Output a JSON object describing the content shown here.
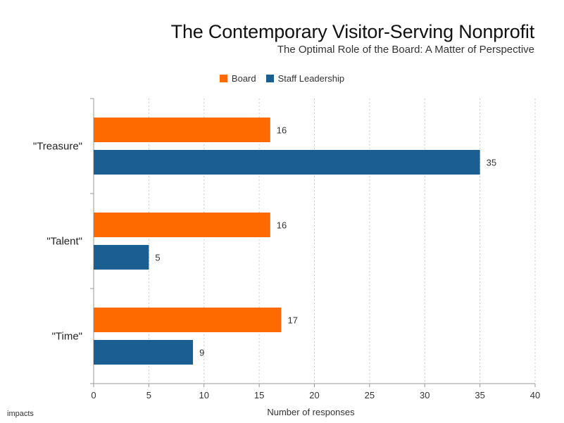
{
  "header": {
    "title": "The Contemporary Visitor-Serving Nonprofit",
    "subtitle": "The Optimal Role of the Board: A Matter of Perspective"
  },
  "footer": {
    "logo_text": "impacts"
  },
  "colors": {
    "board": "#FF6A00",
    "staff": "#1B5E91",
    "grid": "#cccccc",
    "axis": "#999999"
  },
  "chart_data": {
    "type": "bar",
    "orientation": "horizontal",
    "title": "The Contemporary Visitor-Serving Nonprofit",
    "subtitle": "The Optimal Role of the Board: A Matter of Perspective",
    "categories": [
      "\"Treasure\"",
      "\"Talent\"",
      "\"Time\""
    ],
    "series": [
      {
        "name": "Board",
        "values": [
          16,
          16,
          17
        ]
      },
      {
        "name": "Staff Leadership",
        "values": [
          35,
          5,
          9
        ]
      }
    ],
    "xlabel": "Number of responses",
    "ylabel": "",
    "xlim": [
      0,
      40
    ],
    "xticks": [
      0,
      5,
      10,
      15,
      20,
      25,
      30,
      35,
      40
    ],
    "grid": true,
    "legend": "top-center"
  }
}
